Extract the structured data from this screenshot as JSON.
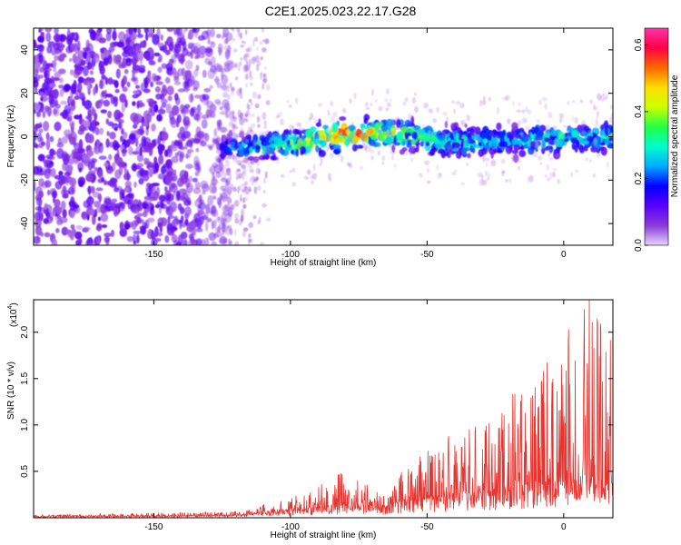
{
  "chart_data": [
    {
      "type": "heatmap",
      "title": "C2E1.2025.023.22.17.G28",
      "xlabel": "Height of straight line (km)",
      "ylabel": "Frequency (Hz)",
      "xlim": [
        -194,
        18
      ],
      "ylim": [
        -50,
        50
      ],
      "x_ticks": [
        -150,
        -100,
        -50,
        0
      ],
      "x_tick_labels": [
        "-150",
        "-100",
        "-50",
        "0"
      ],
      "y_ticks": [
        -40,
        -20,
        0,
        20,
        40
      ],
      "y_tick_labels": [
        "-40",
        "-20",
        "0",
        "20",
        "40"
      ],
      "colorbar": {
        "label": "Normalized spectral amplitude",
        "range": [
          0,
          0.65
        ],
        "ticks": [
          0,
          0.2,
          0.4,
          0.6
        ],
        "tick_labels": [
          "0.0",
          "0.2",
          "0.4",
          "0.6"
        ],
        "colors": [
          "#e6d4fb",
          "#8c3ad8",
          "#5a00ff",
          "#0000ff",
          "#00aaff",
          "#00ffcc",
          "#22ff44",
          "#ccff00",
          "#ffdd00",
          "#ff6600",
          "#ff0044",
          "#ff33aa"
        ]
      },
      "noise_region": {
        "x": [
          -194,
          -122
        ],
        "y": [
          -50,
          50
        ],
        "level": 0.08
      },
      "sparse_noise_region": {
        "x": [
          -125,
          -108
        ],
        "y": [
          -50,
          50
        ],
        "level": 0.04
      },
      "signal_band": {
        "x": [
          -125,
          -110,
          -100,
          -90,
          -80,
          -70,
          -60,
          -50,
          -40,
          -30,
          -20,
          -10,
          0,
          10,
          18
        ],
        "center_freq": [
          -5,
          -4,
          -3,
          -1,
          1,
          2,
          1,
          -1,
          -2,
          -2,
          -2,
          -1,
          -1,
          -1,
          1
        ],
        "half_width": [
          5,
          6,
          7,
          7,
          7,
          7,
          7,
          7,
          7,
          7,
          7,
          7,
          7,
          7,
          7
        ],
        "peak_amplitude": [
          0.2,
          0.3,
          0.33,
          0.4,
          0.55,
          0.45,
          0.38,
          0.3,
          0.3,
          0.26,
          0.26,
          0.3,
          0.3,
          0.28,
          0.3
        ]
      }
    },
    {
      "type": "line",
      "title": "",
      "xlabel": "Height of straight line (km)",
      "ylabel": "SNR (10 * v/v)",
      "y_multiplier": "(x10",
      "y_multiplier_exp": "4",
      "y_multiplier_close": ")",
      "xlim": [
        -194,
        18
      ],
      "ylim": [
        0,
        2.35
      ],
      "x_ticks": [
        -150,
        -100,
        -50,
        0
      ],
      "x_tick_labels": [
        "-150",
        "-100",
        "-50",
        "0"
      ],
      "y_ticks": [
        0.5,
        1.0,
        1.5,
        2.0
      ],
      "y_tick_labels": [
        "0.5",
        "1.0",
        "1.5",
        "2.0"
      ],
      "series": [
        {
          "color": "#e8332e",
          "envelope": {
            "x": [
              -194,
              -150,
              -125,
              -115,
              -110,
              -100,
              -90,
              -80,
              -75,
              -70,
              -65,
              -60,
              -50,
              -40,
              -30,
              -20,
              -10,
              -5,
              0,
              5,
              10,
              15,
              18
            ],
            "baseline": [
              0.01,
              0.015,
              0.02,
              0.03,
              0.05,
              0.06,
              0.08,
              0.1,
              0.1,
              0.1,
              0.08,
              0.12,
              0.15,
              0.18,
              0.2,
              0.22,
              0.25,
              0.28,
              0.3,
              0.3,
              0.32,
              0.35,
              0.35
            ],
            "peak": [
              0.03,
              0.05,
              0.06,
              0.08,
              0.13,
              0.2,
              0.3,
              0.55,
              0.4,
              0.3,
              0.2,
              0.45,
              0.7,
              0.9,
              1.0,
              1.25,
              1.6,
              1.75,
              1.85,
              1.95,
              2.3,
              2.35,
              1.8
            ]
          }
        }
      ]
    }
  ]
}
